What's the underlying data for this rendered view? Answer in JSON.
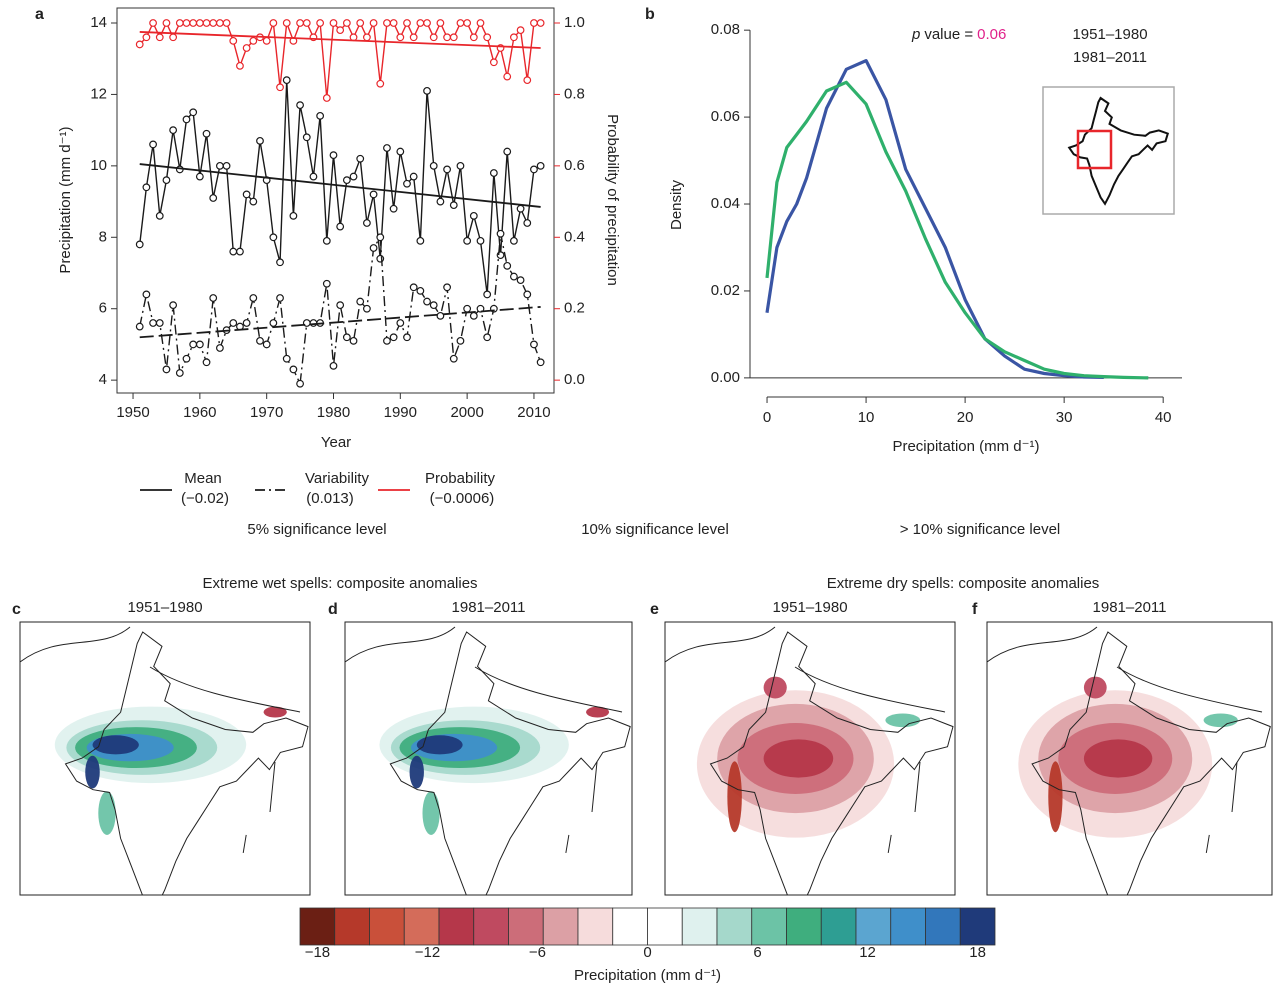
{
  "chart_data": [
    {
      "type": "line",
      "panel": "a",
      "x_label": "Year",
      "y_label": "Precipitation (mm d⁻¹)",
      "y2_label": "Probability of precipitation",
      "xlim": [
        1947.6,
        2013
      ],
      "ylim": [
        3.64,
        14.42
      ],
      "y2lim": [
        -0.036,
        1.042
      ],
      "xticks": [
        1950,
        1960,
        1970,
        1980,
        1990,
        2000,
        2010
      ],
      "yticks": [
        4,
        6,
        8,
        10,
        12,
        14
      ],
      "y2ticks": [
        {
          "value": 0,
          "label": "0.0"
        },
        0.2,
        0.4,
        0.6,
        0.8,
        {
          "value": 1,
          "label": "1.0"
        }
      ],
      "y2_color": "#e8262b",
      "x": [
        1951,
        1952,
        1953,
        1954,
        1955,
        1956,
        1957,
        1958,
        1959,
        1960,
        1961,
        1962,
        1963,
        1964,
        1965,
        1966,
        1967,
        1968,
        1969,
        1970,
        1971,
        1972,
        1973,
        1974,
        1975,
        1976,
        1977,
        1978,
        1979,
        1980,
        1981,
        1982,
        1983,
        1984,
        1985,
        1986,
        1987,
        1988,
        1989,
        1990,
        1991,
        1992,
        1993,
        1994,
        1995,
        1996,
        1997,
        1998,
        1999,
        2000,
        2001,
        2002,
        2003,
        2004,
        2005,
        2006,
        2007,
        2008,
        2009,
        2010,
        2011
      ],
      "series": [
        {
          "name": "Mean",
          "color": "#1a1a1a",
          "dash": "none",
          "trend_label": "(−0.02)",
          "trend_label_color": "#e0218a",
          "values": [
            7.8,
            9.4,
            10.6,
            8.6,
            9.6,
            11.0,
            9.9,
            11.3,
            11.5,
            9.7,
            10.9,
            9.1,
            10.0,
            10.0,
            7.6,
            7.6,
            9.2,
            9.0,
            10.7,
            9.6,
            8.0,
            7.3,
            12.4,
            8.6,
            11.7,
            10.8,
            9.7,
            11.4,
            7.9,
            10.3,
            8.3,
            9.6,
            9.7,
            10.2,
            8.4,
            9.2,
            7.4,
            10.5,
            8.8,
            10.4,
            9.5,
            9.7,
            7.9,
            12.1,
            10.0,
            9.0,
            9.9,
            8.9,
            10.0,
            7.9,
            8.6,
            7.9,
            6.4,
            9.8,
            7.5,
            10.4,
            7.9,
            8.8,
            8.4,
            9.9,
            10.0
          ],
          "trend": {
            "x": [
              1951,
              2011
            ],
            "values": [
              10.05,
              8.85
            ]
          }
        },
        {
          "name": "Variability",
          "color": "#1a1a1a",
          "dash": "10,4,2,4",
          "trend_label": "(0.013)",
          "trend_label_color": "#7b3fa0",
          "values": [
            5.5,
            6.4,
            5.6,
            5.6,
            4.3,
            6.1,
            4.2,
            4.6,
            5.0,
            5.0,
            4.5,
            6.3,
            4.9,
            5.4,
            5.6,
            5.5,
            5.6,
            6.3,
            5.1,
            5.0,
            5.6,
            6.3,
            4.6,
            4.3,
            3.9,
            5.6,
            5.6,
            5.6,
            6.7,
            4.4,
            6.1,
            5.2,
            5.1,
            6.2,
            6.0,
            7.7,
            8.0,
            5.1,
            5.2,
            5.6,
            5.2,
            6.6,
            6.5,
            6.2,
            6.1,
            5.8,
            6.6,
            4.6,
            5.1,
            6.0,
            5.8,
            6.0,
            5.2,
            6.0,
            8.1,
            7.2,
            6.9,
            6.8,
            6.4,
            5.0,
            4.5
          ],
          "trend": {
            "x": [
              1951,
              2011
            ],
            "values": [
              5.2,
              6.05
            ]
          }
        },
        {
          "name": "Probability",
          "color": "#e8262b",
          "dash": "none",
          "axis": "y2",
          "trend_label": "(−0.0006)",
          "trend_label_color": "#1a1a1a",
          "values": [
            0.94,
            0.96,
            1.0,
            0.96,
            1.0,
            0.96,
            1.0,
            1.0,
            1.0,
            1.0,
            1.0,
            1.0,
            1.0,
            1.0,
            0.95,
            0.88,
            0.93,
            0.95,
            0.96,
            0.95,
            1.0,
            0.82,
            1.0,
            0.95,
            1.0,
            1.0,
            0.96,
            1.0,
            0.79,
            1.0,
            0.98,
            1.0,
            0.96,
            1.0,
            0.96,
            1.0,
            0.83,
            1.0,
            1.0,
            0.96,
            1.0,
            0.96,
            1.0,
            1.0,
            0.96,
            1.0,
            0.96,
            0.96,
            1.0,
            1.0,
            0.96,
            1.0,
            0.96,
            0.89,
            0.93,
            0.85,
            0.96,
            0.98,
            0.84,
            1.0,
            1.0
          ],
          "trend": {
            "x": [
              1951,
              2011
            ],
            "values": [
              0.975,
              0.93
            ]
          }
        }
      ],
      "significance_levels": [
        {
          "label": "5% significance level",
          "color": "#7b3fa0"
        },
        {
          "label": "10% significance level",
          "color": "#e0218a"
        },
        {
          "label": "> 10% significance level",
          "color": "#1a1a1a"
        }
      ]
    },
    {
      "type": "line",
      "panel": "b",
      "x_label": "Precipitation (mm d⁻¹)",
      "y_label": "Density",
      "zero_line": true,
      "xlim": [
        -1.72,
        41.9
      ],
      "ylim": [
        -0.0044,
        0.0851
      ],
      "xticks": [
        0,
        10,
        20,
        30,
        40
      ],
      "yticks": [
        {
          "value": 0,
          "label": "0.00"
        },
        0.02,
        0.04,
        0.06,
        0.08
      ],
      "annotation": {
        "prefix": "p",
        "text": "value =",
        "value": "0.06",
        "value_color": "#e0218a"
      },
      "x": [
        0,
        1,
        2,
        3,
        4,
        6,
        8,
        10,
        12,
        14,
        16,
        18,
        20,
        22,
        24,
        26,
        28,
        30,
        32,
        34,
        36,
        38.5
      ],
      "series": [
        {
          "name": "1951–1980",
          "color": "#3a55a4",
          "values": [
            0.015,
            0.03,
            0.036,
            0.04,
            0.046,
            0.062,
            0.071,
            0.073,
            0.064,
            0.048,
            0.039,
            0.03,
            0.018,
            0.009,
            0.005,
            0.002,
            0.001,
            0.0005,
            0.0002,
            0.0001,
            null,
            null
          ]
        },
        {
          "name": "1981–2011",
          "color": "#2fb06c",
          "values": [
            0.023,
            0.045,
            0.053,
            0.056,
            0.059,
            0.066,
            0.068,
            0.063,
            0.052,
            0.043,
            0.032,
            0.022,
            0.015,
            0.009,
            0.006,
            0.004,
            0.002,
            0.001,
            0.0005,
            0.0003,
            0.0001,
            0.0
          ]
        }
      ]
    },
    {
      "type": "map",
      "group_titles": [
        "Extreme wet spells: composite anomalies",
        "Extreme dry spells: composite anomalies"
      ],
      "panels": [
        {
          "label": "c",
          "title": "1951–1980",
          "kind": "wet"
        },
        {
          "label": "d",
          "title": "1981–2011",
          "kind": "wet"
        },
        {
          "label": "e",
          "title": "1951–1980",
          "kind": "dry"
        },
        {
          "label": "f",
          "title": "1981–2011",
          "kind": "dry"
        }
      ]
    },
    {
      "type": "colorbar",
      "x_label": "Precipitation (mm d⁻¹)",
      "xlim": [
        -18.95,
        18.95
      ],
      "xticks": [
        {
          "value": -18,
          "label": "−18"
        },
        {
          "value": -12,
          "label": "−12"
        },
        {
          "value": -6,
          "label": "−6"
        },
        0,
        6,
        12,
        18
      ],
      "colors": [
        "#6b1f14",
        "#b5392a",
        "#c9503a",
        "#d46c5a",
        "#b5374a",
        "#bf4a60",
        "#cc6d79",
        "#dca0a5",
        "#f6dcdc",
        "#ffffff",
        "#ffffff",
        "#dff1ee",
        "#a5d8cb",
        "#6cc3a6",
        "#3fae7e",
        "#2e9e93",
        "#5ba5d0",
        "#3f8fca",
        "#3277bb",
        "#1f3a7a"
      ]
    }
  ]
}
